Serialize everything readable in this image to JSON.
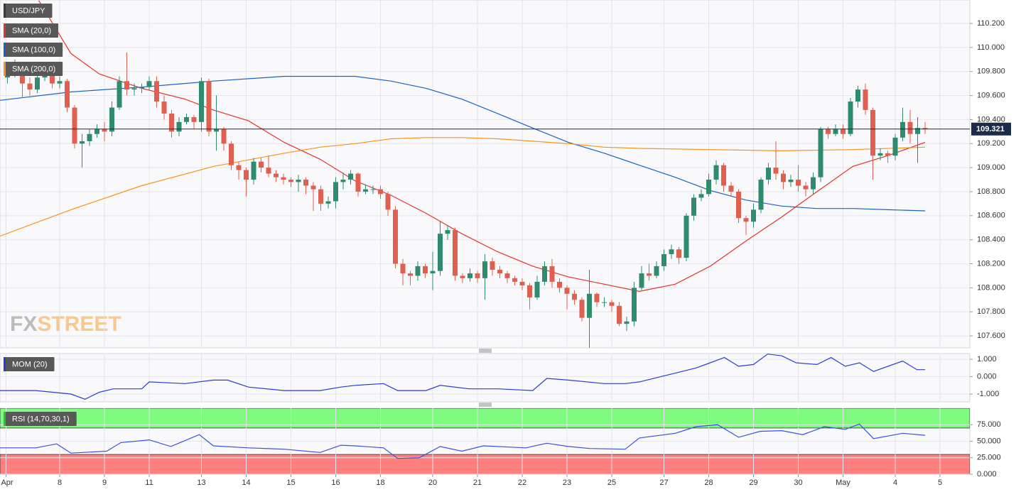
{
  "chart_data": [
    {
      "type": "candlestick",
      "title": "USD/JPY",
      "x": [
        1,
        2,
        3,
        4,
        5,
        6,
        7,
        8,
        9,
        10,
        11,
        12,
        13,
        14,
        15,
        16,
        17,
        18,
        19,
        20,
        21,
        22,
        23,
        24,
        25,
        26,
        27,
        28,
        29,
        30,
        31,
        32,
        33,
        34,
        35,
        36,
        37,
        38,
        39,
        40,
        41,
        42,
        43,
        44,
        45,
        46,
        47,
        48,
        49,
        50,
        51,
        52,
        53,
        54,
        55,
        56,
        57,
        58,
        59,
        60,
        61,
        62,
        63,
        64,
        65,
        66,
        67,
        68,
        69,
        70,
        71,
        72,
        73,
        74,
        75,
        76,
        77,
        78,
        79,
        80,
        81,
        82,
        83,
        84,
        85,
        86,
        87,
        88,
        89,
        90,
        91,
        92,
        93,
        94,
        95,
        96,
        97,
        98,
        99,
        100,
        101,
        102,
        103,
        104,
        105,
        106,
        107,
        108,
        109,
        110,
        111,
        112,
        113,
        114,
        115,
        116,
        117,
        118,
        119,
        120,
        121,
        122,
        123,
        124
      ],
      "open": [
        109.75,
        109.8,
        109.85,
        109.7,
        109.65,
        109.75,
        109.8,
        109.7,
        109.72,
        109.5,
        109.2,
        109.22,
        109.28,
        109.32,
        109.3,
        109.5,
        109.72,
        109.65,
        109.66,
        109.67,
        109.72,
        109.55,
        109.45,
        109.3,
        109.38,
        109.42,
        109.38,
        109.72,
        109.3,
        109.32,
        109.2,
        109.02,
        108.98,
        108.9,
        109.05,
        109.0,
        108.95,
        108.92,
        108.9,
        108.88,
        108.9,
        108.85,
        108.82,
        108.7,
        108.72,
        108.88,
        108.9,
        108.95,
        108.8,
        108.82,
        108.82,
        108.78,
        108.65,
        108.2,
        108.12,
        108.1,
        108.18,
        108.12,
        108.14,
        108.45,
        108.48,
        108.1,
        108.08,
        108.12,
        108.08,
        108.22,
        108.15,
        108.12,
        108.08,
        108.05,
        108.02,
        107.92,
        108.05,
        108.18,
        108.05,
        108.0,
        107.95,
        107.9,
        107.75,
        107.95,
        107.88,
        107.88,
        107.85,
        107.7,
        107.72,
        108.0,
        108.12,
        108.1,
        108.18,
        108.28,
        108.32,
        108.25,
        108.6,
        108.75,
        108.78,
        108.9,
        109.02,
        108.85,
        108.8,
        108.58,
        108.55,
        108.65,
        108.9,
        109.0,
        108.95,
        108.88,
        108.9,
        108.85,
        108.82,
        108.92,
        109.32,
        109.28,
        109.32,
        109.28,
        109.55,
        109.65,
        109.48,
        109.1,
        109.12,
        109.1,
        109.25,
        109.38,
        109.28,
        109.33
      ],
      "high": [
        109.85,
        109.9,
        109.88,
        109.75,
        109.8,
        109.85,
        109.82,
        109.76,
        109.74,
        109.52,
        109.28,
        109.32,
        109.36,
        109.38,
        109.55,
        109.76,
        109.96,
        109.7,
        109.7,
        109.76,
        109.76,
        109.6,
        109.48,
        109.42,
        109.45,
        109.44,
        109.75,
        109.74,
        109.6,
        109.34,
        109.22,
        109.05,
        109.0,
        109.08,
        109.08,
        109.1,
        108.98,
        108.95,
        108.92,
        108.94,
        108.92,
        108.88,
        108.85,
        108.76,
        108.92,
        108.96,
        108.98,
        108.96,
        108.86,
        108.85,
        108.85,
        108.8,
        108.68,
        108.24,
        108.14,
        108.22,
        108.2,
        108.3,
        108.55,
        108.52,
        108.5,
        108.12,
        108.16,
        108.14,
        108.28,
        108.25,
        108.18,
        108.14,
        108.1,
        108.08,
        108.04,
        108.1,
        108.22,
        108.24,
        108.08,
        108.02,
        107.98,
        107.92,
        108.15,
        107.96,
        107.92,
        107.9,
        107.88,
        107.76,
        108.05,
        108.18,
        108.2,
        108.22,
        108.32,
        108.36,
        108.34,
        108.62,
        108.78,
        108.82,
        108.95,
        109.06,
        109.04,
        108.88,
        108.82,
        108.6,
        108.7,
        108.92,
        109.04,
        109.22,
        108.98,
        108.94,
        109.02,
        108.88,
        108.96,
        109.34,
        109.34,
        109.36,
        109.36,
        109.58,
        109.68,
        109.7,
        109.5,
        109.16,
        109.14,
        109.28,
        109.5,
        109.48,
        109.42,
        109.38
      ],
      "low": [
        109.7,
        109.75,
        109.58,
        109.6,
        109.62,
        109.72,
        109.66,
        109.66,
        109.46,
        109.16,
        109.0,
        109.18,
        109.25,
        109.22,
        109.26,
        109.48,
        109.6,
        109.6,
        109.62,
        109.64,
        109.5,
        109.4,
        109.25,
        109.26,
        109.36,
        109.32,
        109.3,
        109.26,
        109.14,
        109.14,
        108.98,
        108.9,
        108.76,
        108.86,
        108.96,
        108.92,
        108.88,
        108.86,
        108.84,
        108.8,
        108.78,
        108.64,
        108.64,
        108.66,
        108.66,
        108.82,
        108.86,
        108.76,
        108.78,
        108.78,
        108.74,
        108.6,
        108.16,
        108.02,
        108.02,
        108.06,
        108.08,
        107.98,
        108.1,
        108.4,
        108.06,
        108.04,
        108.05,
        108.04,
        107.9,
        108.1,
        108.08,
        108.04,
        108.02,
        107.98,
        107.82,
        107.9,
        108.02,
        108.0,
        107.96,
        107.82,
        107.86,
        107.72,
        107.5,
        107.84,
        107.84,
        107.8,
        107.68,
        107.64,
        107.68,
        107.98,
        108.06,
        108.08,
        108.14,
        108.24,
        108.2,
        108.22,
        108.56,
        108.72,
        108.76,
        108.86,
        108.8,
        108.76,
        108.54,
        108.44,
        108.5,
        108.62,
        108.86,
        108.9,
        108.82,
        108.84,
        108.8,
        108.76,
        108.78,
        108.88,
        109.24,
        109.26,
        109.24,
        109.26,
        109.5,
        109.44,
        108.9,
        109.06,
        109.04,
        109.06,
        109.22,
        109.2,
        109.04,
        109.28
      ],
      "close": [
        109.8,
        109.85,
        109.7,
        109.65,
        109.75,
        109.8,
        109.7,
        109.72,
        109.5,
        109.2,
        109.22,
        109.28,
        109.32,
        109.3,
        109.5,
        109.72,
        109.65,
        109.66,
        109.67,
        109.72,
        109.55,
        109.45,
        109.3,
        109.38,
        109.42,
        109.38,
        109.72,
        109.3,
        109.32,
        109.2,
        109.02,
        108.98,
        108.9,
        109.05,
        109.0,
        108.95,
        108.92,
        108.9,
        108.88,
        108.9,
        108.85,
        108.82,
        108.7,
        108.72,
        108.88,
        108.9,
        108.95,
        108.8,
        108.82,
        108.82,
        108.78,
        108.65,
        108.2,
        108.12,
        108.1,
        108.18,
        108.12,
        108.14,
        108.45,
        108.48,
        108.1,
        108.08,
        108.12,
        108.08,
        108.22,
        108.15,
        108.12,
        108.08,
        108.05,
        108.02,
        107.92,
        108.05,
        108.18,
        108.05,
        108.0,
        107.95,
        107.9,
        107.75,
        107.95,
        107.88,
        107.88,
        107.85,
        107.7,
        107.72,
        108.0,
        108.12,
        108.1,
        108.18,
        108.28,
        108.32,
        108.25,
        108.6,
        108.75,
        108.78,
        108.9,
        109.02,
        108.85,
        108.8,
        108.58,
        108.55,
        108.65,
        108.9,
        109.0,
        108.95,
        108.88,
        108.9,
        108.85,
        108.82,
        108.92,
        109.32,
        109.28,
        109.32,
        109.28,
        109.55,
        109.65,
        109.48,
        109.1,
        109.12,
        109.1,
        109.25,
        109.38,
        109.28,
        109.33,
        109.32
      ],
      "up_color": "#2e8b6e",
      "down_color": "#e0604f",
      "xlim": [
        0,
        130
      ],
      "ylim": [
        107.5,
        110.395
      ],
      "yticks": [
        {
          "value": 107.6,
          "label": "107.600"
        },
        {
          "value": 107.8,
          "label": "107.800"
        },
        {
          "value": 108.0,
          "label": "108.000"
        },
        {
          "value": 108.2,
          "label": "108.200"
        },
        {
          "value": 108.4,
          "label": "108.400"
        },
        {
          "value": 108.6,
          "label": "108.600"
        },
        {
          "value": 108.8,
          "label": "108.800"
        },
        {
          "value": 109.0,
          "label": "109.000"
        },
        {
          "value": 109.2,
          "label": "109.200"
        },
        {
          "value": 109.4,
          "label": "109.400"
        },
        {
          "value": 109.6,
          "label": "109.600"
        },
        {
          "value": 109.8,
          "label": "109.800"
        },
        {
          "value": 110.0,
          "label": "110.000"
        },
        {
          "value": 110.2,
          "label": "110.200"
        }
      ],
      "grid": true,
      "last_price": 109.321,
      "last_price_color": "#1c2b4a",
      "watermark": [
        "FX",
        "STREET"
      ],
      "series": [
        {
          "name": "SMA (20,0)",
          "color": "#e5322d",
          "x": [
            5.2,
            9.5,
            13.3,
            19,
            24.8,
            28.6,
            33.3,
            38.1,
            42.9,
            47.6,
            52.4,
            57.1,
            61.9,
            66.7,
            71.4,
            76.2,
            81,
            85.7,
            90.5,
            95.2,
            100,
            104.8,
            109.5,
            114.3,
            119,
            124
          ],
          "values": [
            110.39,
            109.95,
            109.78,
            109.66,
            109.57,
            109.48,
            109.39,
            109.21,
            109.07,
            108.89,
            108.77,
            108.62,
            108.45,
            108.3,
            108.18,
            108.09,
            108.03,
            107.97,
            108.03,
            108.18,
            108.39,
            108.59,
            108.8,
            109.01,
            109.1,
            109.21
          ]
        },
        {
          "name": "SMA (100,0)",
          "color": "#1f5fbf",
          "x": [
            0,
            9.5,
            19,
            28.6,
            38.1,
            42.9,
            47.6,
            52.4,
            57.1,
            61.9,
            66.7,
            71.4,
            76.2,
            81,
            85.7,
            90.5,
            95.2,
            100,
            104.8,
            109.5,
            114.3,
            119,
            124
          ],
          "values": [
            109.56,
            109.63,
            109.67,
            109.72,
            109.76,
            109.76,
            109.76,
            109.72,
            109.66,
            109.57,
            109.45,
            109.33,
            109.21,
            109.12,
            109.02,
            108.92,
            108.81,
            108.73,
            108.68,
            108.66,
            108.66,
            108.65,
            108.64
          ]
        },
        {
          "name": "SMA (200,0)",
          "color": "#f7931e",
          "x": [
            0,
            9.5,
            19,
            28.6,
            38.1,
            42.9,
            47.6,
            52.4,
            57.1,
            61.9,
            66.7,
            71.4,
            76.2,
            81,
            85.7,
            95.2,
            104.8,
            114.3,
            124
          ],
          "values": [
            108.43,
            108.65,
            108.85,
            109.01,
            109.12,
            109.17,
            109.2,
            109.24,
            109.25,
            109.25,
            109.24,
            109.22,
            109.2,
            109.17,
            109.16,
            109.15,
            109.14,
            109.15,
            109.17
          ]
        }
      ]
    },
    {
      "type": "line",
      "series": [
        {
          "name": "MOM (20)",
          "color": "#2a3bd8",
          "x": [
            0,
            4.8,
            9.5,
            11.4,
            13.3,
            15.2,
            19,
            20,
            24.8,
            28.6,
            30.5,
            33.3,
            38.1,
            42.9,
            45.7,
            47.6,
            51.4,
            53.3,
            57.1,
            59,
            62.9,
            66.7,
            71.4,
            73.3,
            76.2,
            81,
            83.8,
            85.7,
            90.5,
            93.3,
            95.2,
            97.1,
            99,
            101,
            102.9,
            104.8,
            106.7,
            109.5,
            111.4,
            113.3,
            115.2,
            117.1,
            121,
            122.9,
            124
          ],
          "values": [
            -0.8,
            -0.8,
            -1.0,
            -1.3,
            -0.9,
            -0.7,
            -0.7,
            -0.3,
            -0.4,
            -0.2,
            -0.2,
            -0.6,
            -0.8,
            -0.8,
            -0.6,
            -0.5,
            -0.4,
            -0.8,
            -0.8,
            -0.5,
            -0.7,
            -0.7,
            -0.8,
            -0.1,
            -0.2,
            -0.4,
            -0.4,
            -0.3,
            0.2,
            0.5,
            0.8,
            1.1,
            0.6,
            0.7,
            1.3,
            1.2,
            0.8,
            0.7,
            1.1,
            0.6,
            0.8,
            0.3,
            0.9,
            0.4,
            0.4
          ]
        }
      ],
      "xlim": [
        0,
        130
      ],
      "ylim": [
        -1.45,
        1.33
      ],
      "yticks": [
        {
          "value": 1,
          "label": "1.000"
        },
        {
          "value": 0,
          "label": "0.000"
        },
        {
          "value": -1,
          "label": "-1.000"
        }
      ],
      "grid": true
    },
    {
      "type": "line",
      "series": [
        {
          "name": "RSI (14,70,30,1)",
          "color": "#3552e0",
          "x": [
            0,
            4.8,
            7.6,
            9.5,
            14.3,
            16.2,
            20,
            22.9,
            26.7,
            28.6,
            33.3,
            38.1,
            42.9,
            45.7,
            47.6,
            51.4,
            53.3,
            56.2,
            59,
            61.9,
            64.8,
            70.5,
            73.3,
            76.2,
            79,
            83.8,
            85.7,
            90.5,
            93.3,
            96.2,
            99,
            101.9,
            104.8,
            107.6,
            110.5,
            113.3,
            115.2,
            117.1,
            121,
            124
          ],
          "values": [
            40,
            40,
            46,
            32,
            35,
            48,
            52,
            42,
            60,
            43,
            40,
            38,
            33,
            44,
            43,
            40,
            24,
            25,
            42,
            35,
            43,
            40,
            47,
            42,
            39,
            38,
            55,
            62,
            72,
            75,
            56,
            65,
            66,
            60,
            72,
            68,
            76,
            54,
            62,
            59
          ]
        }
      ],
      "bands": [
        {
          "from": 70,
          "to": 100,
          "color": "#7ffb7f"
        },
        {
          "from": 0,
          "to": 30,
          "color": "#ff7f7f"
        }
      ],
      "legend_color": "#2fbf2f",
      "xlim": [
        0,
        130
      ],
      "ylim": [
        0,
        100
      ],
      "yticks": [
        {
          "value": 75,
          "label": "75.000"
        },
        {
          "value": 50,
          "label": "50.000"
        },
        {
          "value": 25,
          "label": "25.000"
        },
        {
          "value": 0,
          "label": "0.000"
        }
      ],
      "grid": true,
      "xticks": [
        {
          "value": 0.8,
          "label": "Apr"
        },
        {
          "value": 8,
          "label": "8"
        },
        {
          "value": 14,
          "label": "9"
        },
        {
          "value": 20,
          "label": "11"
        },
        {
          "value": 27,
          "label": "13"
        },
        {
          "value": 33,
          "label": "14"
        },
        {
          "value": 39,
          "label": "15"
        },
        {
          "value": 45,
          "label": "16"
        },
        {
          "value": 51,
          "label": "18"
        },
        {
          "value": 58,
          "label": "20"
        },
        {
          "value": 64,
          "label": "21"
        },
        {
          "value": 70,
          "label": "22"
        },
        {
          "value": 76,
          "label": "23"
        },
        {
          "value": 82,
          "label": "25"
        },
        {
          "value": 89,
          "label": "27"
        },
        {
          "value": 95,
          "label": "28"
        },
        {
          "value": 101,
          "label": "29"
        },
        {
          "value": 107,
          "label": "30"
        },
        {
          "value": 113,
          "label": "May"
        },
        {
          "value": 120,
          "label": "4"
        },
        {
          "value": 126,
          "label": "5"
        }
      ]
    }
  ]
}
